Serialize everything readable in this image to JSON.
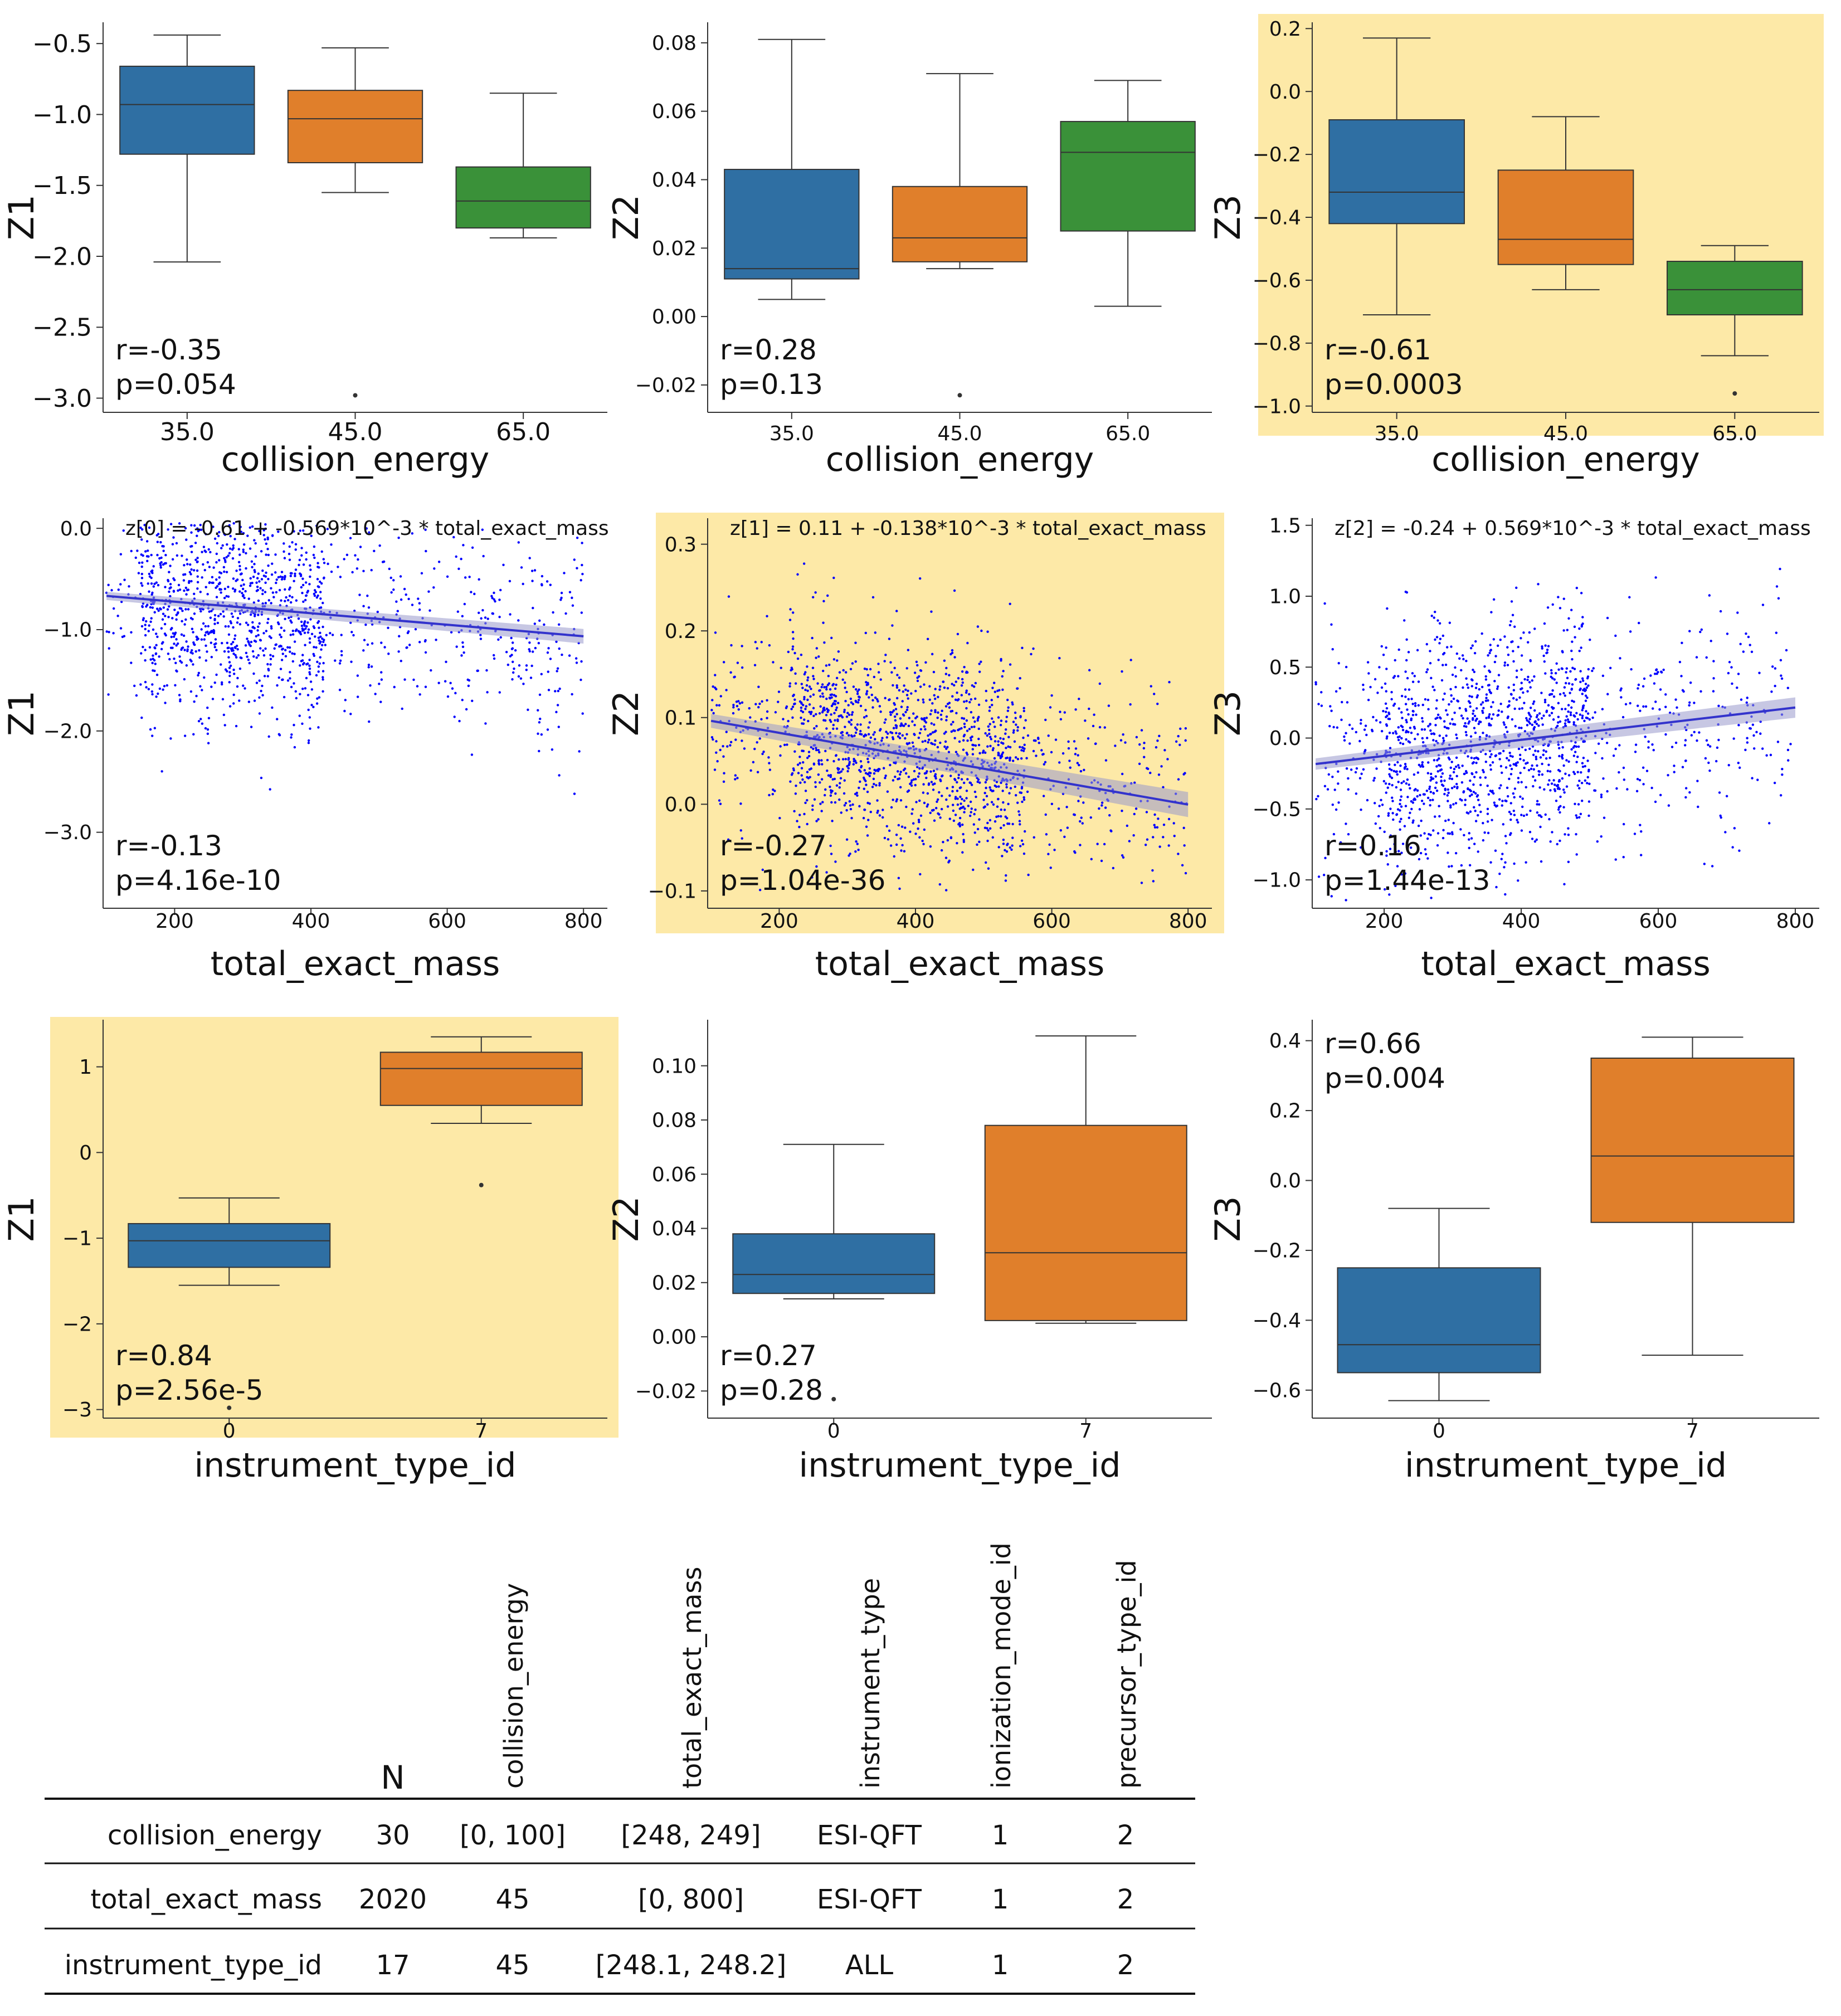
{
  "colors": {
    "blue": "#2f6fa3",
    "orange": "#e07f2b",
    "green": "#3a9139",
    "scatter": "#0000ff",
    "fit": "#3333cc",
    "band": "#9999cc",
    "highlight": "#fde9a7",
    "axis": "#333333"
  },
  "chart_data": [
    {
      "id": "box-ce-z1",
      "type": "box",
      "xlabel": "collision_energy",
      "ylabel": "Z1",
      "ylim": [
        -3.1,
        -0.35
      ],
      "yticks": [
        "−3.0",
        "−2.5",
        "−2.0",
        "−1.5",
        "−1.0",
        "−0.5"
      ],
      "ytick_values": [
        -3.0,
        -2.5,
        -2.0,
        -1.5,
        -1.0,
        -0.5
      ],
      "categories": [
        "35.0",
        "45.0",
        "65.0"
      ],
      "tick_size": "large",
      "highlight": false,
      "boxes": [
        {
          "whislo": -2.04,
          "q1": -1.28,
          "med": -0.93,
          "q3": -0.66,
          "whishi": -0.44,
          "fliers": []
        },
        {
          "whislo": -1.55,
          "q1": -1.34,
          "med": -1.03,
          "q3": -0.83,
          "whishi": -0.53,
          "fliers": [
            -2.98
          ]
        },
        {
          "whislo": -1.87,
          "q1": -1.8,
          "med": -1.61,
          "q3": -1.37,
          "whishi": -0.85,
          "fliers": []
        }
      ],
      "stats": {
        "r": "r=-0.35",
        "p": "p=0.054"
      },
      "stats_pos": "bottom-left"
    },
    {
      "id": "box-ce-z2",
      "type": "box",
      "xlabel": "collision_energy",
      "ylabel": "Z2",
      "ylim": [
        -0.028,
        0.086
      ],
      "yticks": [
        "−0.02",
        "0.00",
        "0.02",
        "0.04",
        "0.06",
        "0.08"
      ],
      "ytick_values": [
        -0.02,
        0,
        0.02,
        0.04,
        0.06,
        0.08
      ],
      "categories": [
        "35.0",
        "45.0",
        "65.0"
      ],
      "tick_size": "small",
      "highlight": false,
      "boxes": [
        {
          "whislo": 0.005,
          "q1": 0.011,
          "med": 0.014,
          "q3": 0.043,
          "whishi": 0.081,
          "fliers": []
        },
        {
          "whislo": 0.014,
          "q1": 0.016,
          "med": 0.023,
          "q3": 0.038,
          "whishi": 0.071,
          "fliers": [
            -0.023
          ]
        },
        {
          "whislo": 0.003,
          "q1": 0.025,
          "med": 0.048,
          "q3": 0.057,
          "whishi": 0.069,
          "fliers": []
        }
      ],
      "stats": {
        "r": "r=0.28",
        "p": "p=0.13"
      },
      "stats_pos": "bottom-left"
    },
    {
      "id": "box-ce-z3",
      "type": "box",
      "xlabel": "collision_energy",
      "ylabel": "Z3",
      "ylim": [
        -1.02,
        0.22
      ],
      "yticks": [
        "−1.0",
        "−0.8",
        "−0.6",
        "−0.4",
        "−0.2",
        "0.0",
        "0.2"
      ],
      "ytick_values": [
        -1.0,
        -0.8,
        -0.6,
        -0.4,
        -0.2,
        0,
        0.2
      ],
      "categories": [
        "35.0",
        "45.0",
        "65.0"
      ],
      "tick_size": "small",
      "highlight": true,
      "boxes": [
        {
          "whislo": -0.71,
          "q1": -0.42,
          "med": -0.32,
          "q3": -0.09,
          "whishi": 0.17,
          "fliers": []
        },
        {
          "whislo": -0.63,
          "q1": -0.55,
          "med": -0.47,
          "q3": -0.25,
          "whishi": -0.08,
          "fliers": []
        },
        {
          "whislo": -0.84,
          "q1": -0.71,
          "med": -0.63,
          "q3": -0.54,
          "whishi": -0.49,
          "fliers": [
            -0.96
          ]
        }
      ],
      "stats": {
        "r": "r=-0.61",
        "p": "p=0.0003"
      },
      "stats_pos": "bottom-left"
    },
    {
      "id": "scatter-tem-z1",
      "type": "scatter",
      "xlabel": "total_exact_mass",
      "ylabel": "Z1",
      "xlim": [
        95,
        835
      ],
      "ylim": [
        -3.75,
        0.1
      ],
      "xticks": [
        "200",
        "400",
        "600",
        "800"
      ],
      "xtick_values": [
        200,
        400,
        600,
        800
      ],
      "yticks": [
        "−3.0",
        "−2.0",
        "−1.0",
        "0.0"
      ],
      "ytick_values": [
        -3.0,
        -2.0,
        -1.0,
        0.0
      ],
      "equation": "z[0] = -0.61 + -0.569*10^-3 * total_exact_mass",
      "fit": {
        "intercept": -0.61,
        "slope": -0.000569,
        "x_range": [
          100,
          800
        ],
        "band": 0.04
      },
      "cloud": {
        "n": 1400,
        "mean": -0.85,
        "sd": 0.55,
        "trend": -0.000569,
        "min": -3.65,
        "max": 0.05,
        "seed": 11,
        "dense_x": [
          150,
          420
        ]
      },
      "highlight": false,
      "stats": {
        "r": "r=-0.13",
        "p": "p=4.16e-10"
      },
      "stats_pos": "bottom-left"
    },
    {
      "id": "scatter-tem-z2",
      "type": "scatter",
      "xlabel": "total_exact_mass",
      "ylabel": "Z2",
      "xlim": [
        95,
        835
      ],
      "ylim": [
        -0.12,
        0.33
      ],
      "xticks": [
        "200",
        "400",
        "600",
        "800"
      ],
      "xtick_values": [
        200,
        400,
        600,
        800
      ],
      "yticks": [
        "−0.1",
        "0.0",
        "0.1",
        "0.2",
        "0.3"
      ],
      "ytick_values": [
        -0.1,
        0,
        0.1,
        0.2,
        0.3
      ],
      "equation": "z[1] = 0.11 + -0.138*10^-3 * total_exact_mass",
      "fit": {
        "intercept": 0.11,
        "slope": -0.000138,
        "x_range": [
          100,
          800
        ],
        "band": 0.008
      },
      "cloud": {
        "n": 1600,
        "mean": 0.06,
        "sd": 0.06,
        "trend": -0.000138,
        "min": -0.1,
        "max": 0.31,
        "seed": 23,
        "dense_x": [
          220,
          560
        ]
      },
      "highlight": true,
      "stats": {
        "r": "r=-0.27",
        "p": "p=1.04e-36"
      },
      "stats_pos": "bottom-left"
    },
    {
      "id": "scatter-tem-z3",
      "type": "scatter",
      "xlabel": "total_exact_mass",
      "ylabel": "Z3",
      "xlim": [
        95,
        835
      ],
      "ylim": [
        -1.2,
        1.55
      ],
      "xticks": [
        "200",
        "400",
        "600",
        "800"
      ],
      "xtick_values": [
        200,
        400,
        600,
        800
      ],
      "yticks": [
        "−1.0",
        "−0.5",
        "0.0",
        "0.5",
        "1.0",
        "1.5"
      ],
      "ytick_values": [
        -1.0,
        -0.5,
        0,
        0.5,
        1.0,
        1.5
      ],
      "equation": "z[2] = -0.24 + 0.569*10^-3 * total_exact_mass",
      "fit": {
        "intercept": -0.24,
        "slope": 0.000569,
        "x_range": [
          100,
          800
        ],
        "band": 0.04
      },
      "cloud": {
        "n": 1500,
        "mean": 0.0,
        "sd": 0.42,
        "trend": 0.000569,
        "min": -1.15,
        "max": 1.25,
        "seed": 37,
        "dense_x": [
          200,
          500
        ]
      },
      "highlight": false,
      "stats": {
        "r": "r=0.16",
        "p": "p=1.44e-13"
      },
      "stats_pos": "bottom-left"
    },
    {
      "id": "box-it-z1",
      "type": "box",
      "xlabel": "instrument_type_id",
      "ylabel": "Z1",
      "ylim": [
        -3.1,
        1.55
      ],
      "yticks": [
        "−3",
        "−2",
        "−1",
        "0",
        "1"
      ],
      "ytick_values": [
        -3,
        -2,
        -1,
        0,
        1
      ],
      "categories": [
        "0",
        "7"
      ],
      "tick_size": "small",
      "highlight": true,
      "boxes": [
        {
          "whislo": -1.55,
          "q1": -1.34,
          "med": -1.03,
          "q3": -0.83,
          "whishi": -0.53,
          "fliers": [
            -2.98
          ]
        },
        {
          "whislo": 0.34,
          "q1": 0.55,
          "med": 0.98,
          "q3": 1.17,
          "whishi": 1.35,
          "fliers": [
            -0.38
          ]
        }
      ],
      "stats": {
        "r": "r=0.84",
        "p": "p=2.56e-5"
      },
      "stats_pos": "bottom-left"
    },
    {
      "id": "box-it-z2",
      "type": "box",
      "xlabel": "instrument_type_id",
      "ylabel": "Z2",
      "ylim": [
        -0.03,
        0.117
      ],
      "yticks": [
        "−0.02",
        "0.00",
        "0.02",
        "0.04",
        "0.06",
        "0.08",
        "0.10"
      ],
      "ytick_values": [
        -0.02,
        0,
        0.02,
        0.04,
        0.06,
        0.08,
        0.1
      ],
      "categories": [
        "0",
        "7"
      ],
      "tick_size": "small",
      "highlight": false,
      "boxes": [
        {
          "whislo": 0.014,
          "q1": 0.016,
          "med": 0.023,
          "q3": 0.038,
          "whishi": 0.071,
          "fliers": [
            -0.023
          ]
        },
        {
          "whislo": 0.005,
          "q1": 0.006,
          "med": 0.031,
          "q3": 0.078,
          "whishi": 0.111,
          "fliers": []
        }
      ],
      "stats": {
        "r": "r=0.27",
        "p": "p=0.28"
      },
      "stats_pos": "bottom-left"
    },
    {
      "id": "box-it-z3",
      "type": "box",
      "xlabel": "instrument_type_id",
      "ylabel": "Z3",
      "ylim": [
        -0.68,
        0.46
      ],
      "yticks": [
        "−0.6",
        "−0.4",
        "−0.2",
        "0.0",
        "0.2",
        "0.4"
      ],
      "ytick_values": [
        -0.6,
        -0.4,
        -0.2,
        0,
        0.2,
        0.4
      ],
      "categories": [
        "0",
        "7"
      ],
      "tick_size": "small",
      "highlight": false,
      "boxes": [
        {
          "whislo": -0.63,
          "q1": -0.55,
          "med": -0.47,
          "q3": -0.25,
          "whishi": -0.08,
          "fliers": []
        },
        {
          "whislo": -0.5,
          "q1": -0.12,
          "med": 0.07,
          "q3": 0.35,
          "whishi": 0.41,
          "fliers": []
        }
      ],
      "stats": {
        "r": "r=0.66",
        "p": "p=0.004"
      },
      "stats_pos": "top-left"
    }
  ],
  "table": {
    "headers": [
      "N",
      "collision_energy",
      "total_exact_mass",
      "instrument_type",
      "ionization_mode_id",
      "precursor_type_id"
    ],
    "rows": [
      {
        "label": "collision_energy",
        "cells": [
          "30",
          "[0, 100]",
          "[248, 249]",
          "ESI-QFT",
          "1",
          "2"
        ]
      },
      {
        "label": "total_exact_mass",
        "cells": [
          "2020",
          "45",
          "[0, 800]",
          "ESI-QFT",
          "1",
          "2"
        ]
      },
      {
        "label": "instrument_type_id",
        "cells": [
          "17",
          "45",
          "[248.1, 248.2]",
          "ALL",
          "1",
          "2"
        ]
      }
    ]
  }
}
